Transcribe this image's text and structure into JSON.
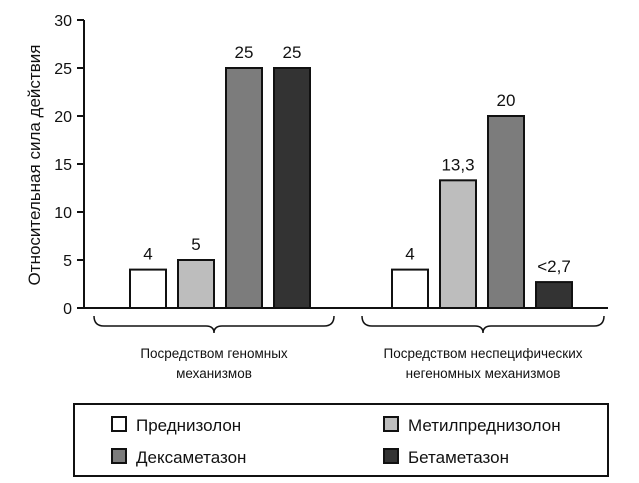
{
  "chart_data": {
    "type": "bar",
    "ylabel": "Относительная сила действия",
    "ylim": [
      0,
      30
    ],
    "yticks": [
      0,
      5,
      10,
      15,
      20,
      25,
      30
    ],
    "groups": [
      {
        "label_lines": [
          "Посредством геномных",
          "механизмов"
        ]
      },
      {
        "label_lines": [
          "Посредством неспецифических",
          "негеномных механизмов"
        ]
      }
    ],
    "series": [
      {
        "name": "Преднизолон",
        "color": "#ffffff",
        "values": [
          4,
          4
        ],
        "labels": [
          "4",
          "4"
        ]
      },
      {
        "name": "Метилпреднизолон",
        "color": "#bdbdbd",
        "values": [
          5,
          13.3
        ],
        "labels": [
          "5",
          "13,3"
        ]
      },
      {
        "name": "Дексаметазон",
        "color": "#7c7c7c",
        "values": [
          25,
          20
        ],
        "labels": [
          "25",
          "20"
        ]
      },
      {
        "name": "Бетаметазон",
        "color": "#333333",
        "values": [
          25,
          2.7
        ],
        "labels": [
          "25",
          "<2,7"
        ]
      }
    ],
    "legend": "bottom",
    "grid": false
  }
}
